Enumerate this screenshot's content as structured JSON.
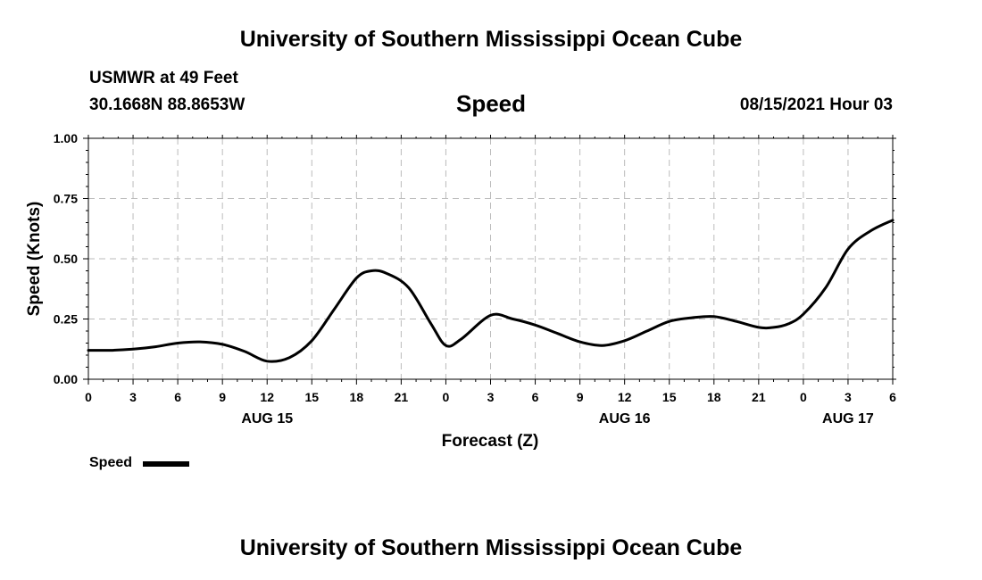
{
  "header": {
    "title": "University of Southern Mississippi Ocean Cube",
    "station": "USMWR at 49 Feet",
    "coordinates": "30.1668N  88.8653W",
    "issued": "08/15/2021 Hour 03"
  },
  "footer": {
    "title": "University of Southern Mississippi Ocean Cube"
  },
  "legend": {
    "label": "Speed",
    "color": "#000000"
  },
  "chart_data": {
    "type": "line",
    "title": "Speed",
    "xlabel": "Forecast (Z)",
    "ylabel": "Speed (Knots)",
    "xlim": [
      0,
      54
    ],
    "ylim": [
      0,
      1
    ],
    "grid": true,
    "x_ticks": [
      0,
      3,
      6,
      9,
      12,
      15,
      18,
      21,
      24,
      27,
      30,
      33,
      36,
      39,
      42,
      45,
      48,
      51,
      54
    ],
    "x_tick_labels": [
      "0",
      "3",
      "6",
      "9",
      "12",
      "15",
      "18",
      "21",
      "0",
      "3",
      "6",
      "9",
      "12",
      "15",
      "18",
      "21",
      "0",
      "3",
      "6"
    ],
    "y_ticks": [
      0,
      0.25,
      0.5,
      0.75,
      1.0
    ],
    "y_tick_labels": [
      "0.00",
      "0.25",
      "0.50",
      "0.75",
      "1.00"
    ],
    "date_labels": [
      {
        "x": 12,
        "label": "AUG 15"
      },
      {
        "x": 36,
        "label": "AUG 16"
      },
      {
        "x": 51,
        "label": "AUG 17"
      }
    ],
    "series": [
      {
        "name": "Speed",
        "color": "#000000",
        "x": [
          0,
          1.5,
          3,
          4.5,
          6,
          7.5,
          9,
          10.5,
          12,
          13.5,
          15,
          16.5,
          18,
          19,
          20,
          21.5,
          23,
          24,
          25,
          27,
          28.5,
          30,
          31.5,
          33,
          34.5,
          36,
          37.5,
          39,
          40.5,
          42,
          43.5,
          45,
          46,
          47,
          48,
          49.5,
          51,
          52.5,
          54
        ],
        "values": [
          0.12,
          0.12,
          0.125,
          0.135,
          0.15,
          0.155,
          0.145,
          0.115,
          0.075,
          0.09,
          0.16,
          0.29,
          0.42,
          0.45,
          0.44,
          0.38,
          0.23,
          0.14,
          0.165,
          0.265,
          0.25,
          0.225,
          0.19,
          0.155,
          0.14,
          0.16,
          0.2,
          0.24,
          0.255,
          0.26,
          0.24,
          0.215,
          0.215,
          0.23,
          0.27,
          0.38,
          0.54,
          0.615,
          0.66
        ]
      }
    ]
  }
}
